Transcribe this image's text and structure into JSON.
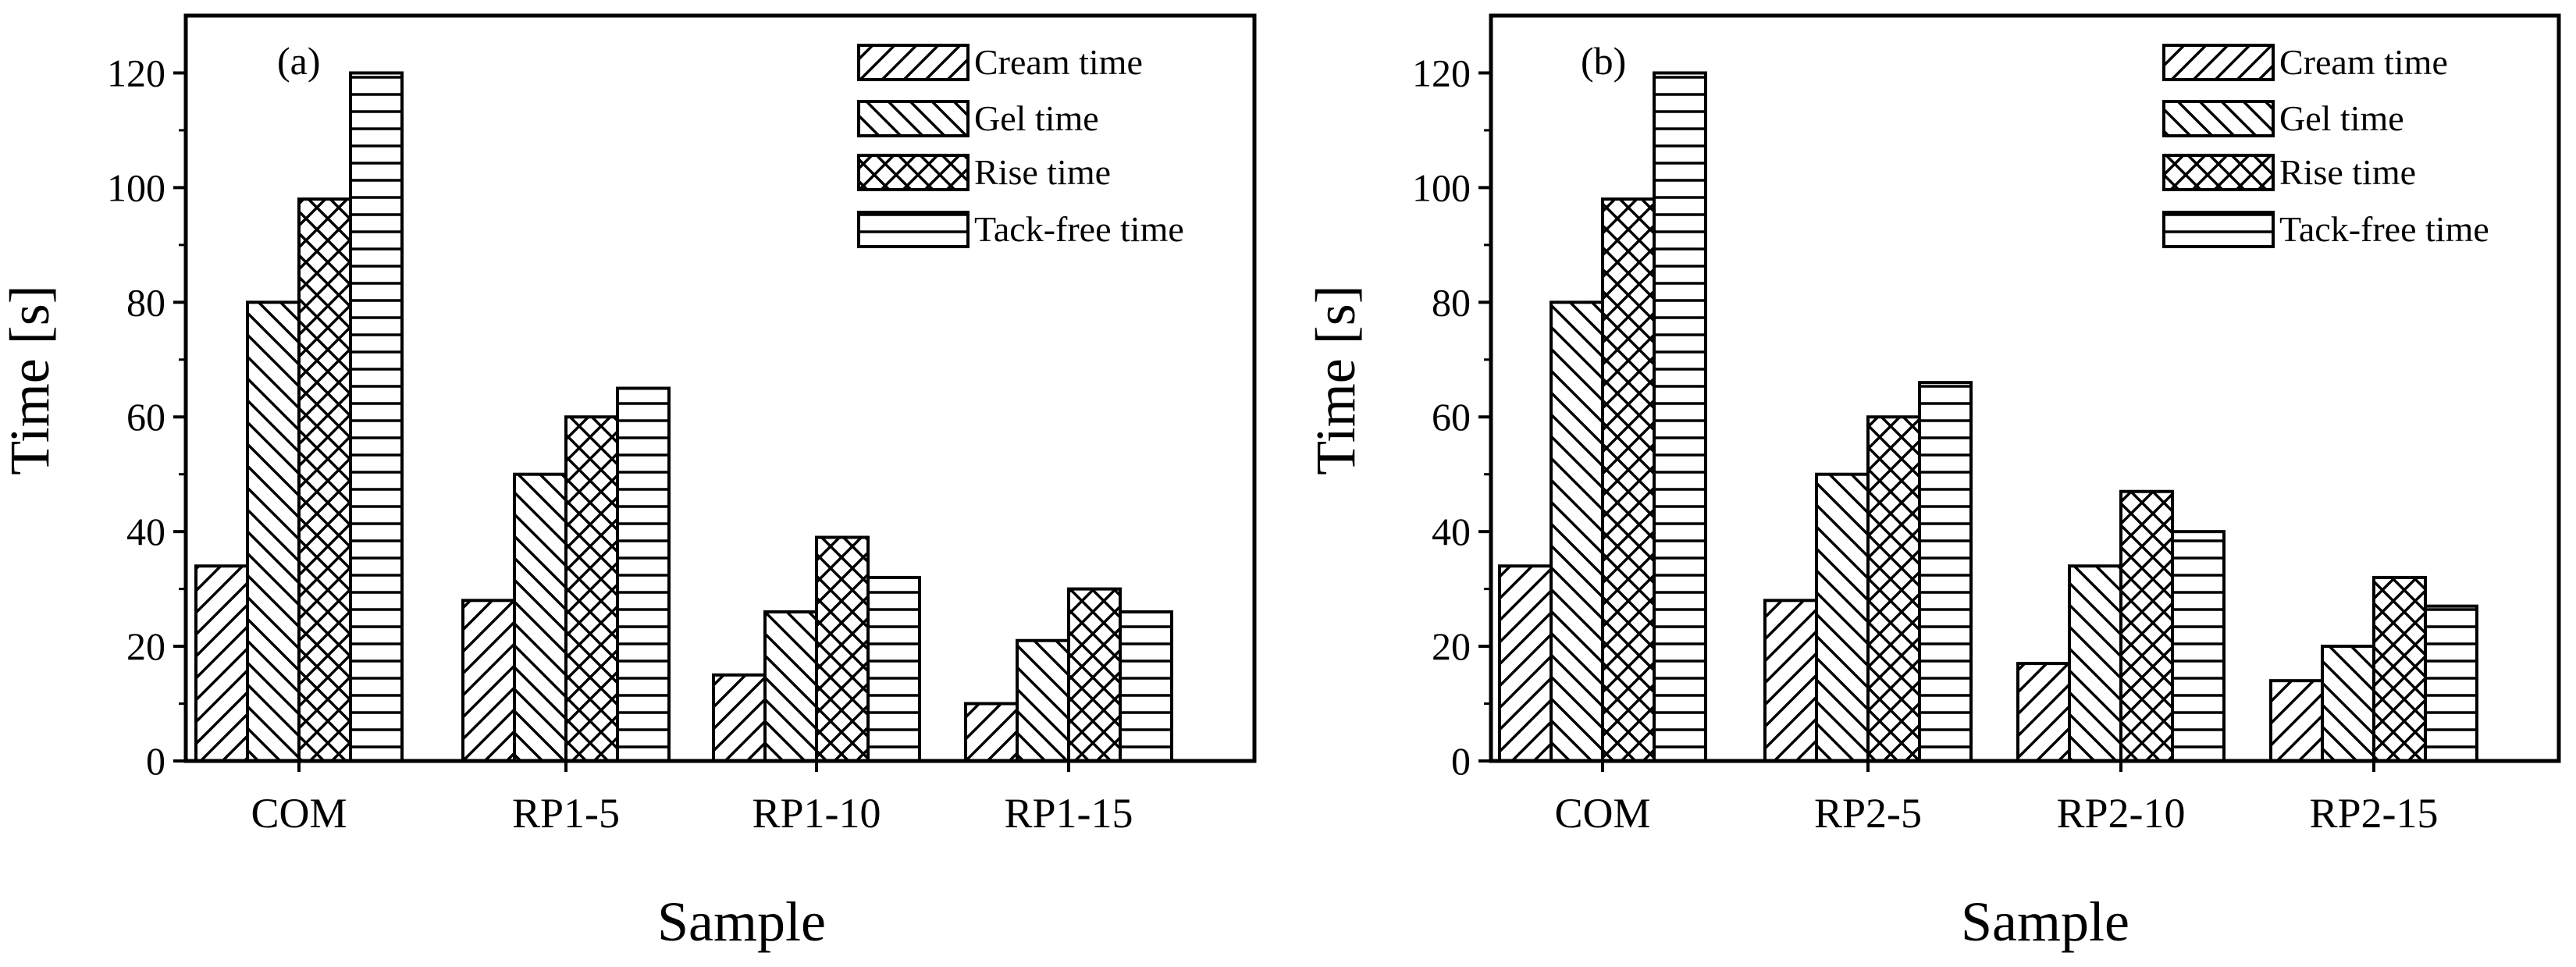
{
  "chart_data": [
    {
      "type": "bar",
      "panel_label": "(a)",
      "categories": [
        "COM",
        "RP1-5",
        "RP1-10",
        "RP1-15"
      ],
      "series": [
        {
          "name": "Cream time",
          "pattern": "diag-up",
          "values": [
            34,
            28,
            15,
            10
          ]
        },
        {
          "name": "Gel time",
          "pattern": "diag-down",
          "values": [
            80,
            50,
            26,
            21
          ]
        },
        {
          "name": "Rise time",
          "pattern": "cross",
          "values": [
            98,
            60,
            39,
            30
          ]
        },
        {
          "name": "Tack-free time",
          "pattern": "horizontal",
          "values": [
            120,
            65,
            32,
            26
          ]
        }
      ],
      "xlabel": "Sample",
      "ylabel": "Time [s]",
      "ylim": [
        0,
        130
      ],
      "yticks": [
        0,
        20,
        40,
        60,
        80,
        100,
        120
      ],
      "legend_position": "top-right",
      "grid": false
    },
    {
      "type": "bar",
      "panel_label": "(b)",
      "categories": [
        "COM",
        "RP2-5",
        "RP2-10",
        "RP2-15"
      ],
      "series": [
        {
          "name": "Cream time",
          "pattern": "diag-up",
          "values": [
            34,
            28,
            17,
            14
          ]
        },
        {
          "name": "Gel time",
          "pattern": "diag-down",
          "values": [
            80,
            50,
            34,
            20
          ]
        },
        {
          "name": "Rise time",
          "pattern": "cross",
          "values": [
            98,
            60,
            47,
            32
          ]
        },
        {
          "name": "Tack-free time",
          "pattern": "horizontal",
          "values": [
            120,
            66,
            40,
            27
          ]
        }
      ],
      "xlabel": "Sample",
      "ylabel": "Time [s]",
      "ylim": [
        0,
        130
      ],
      "yticks": [
        0,
        20,
        40,
        60,
        80,
        100,
        120
      ],
      "legend_position": "top-right",
      "grid": false
    }
  ]
}
